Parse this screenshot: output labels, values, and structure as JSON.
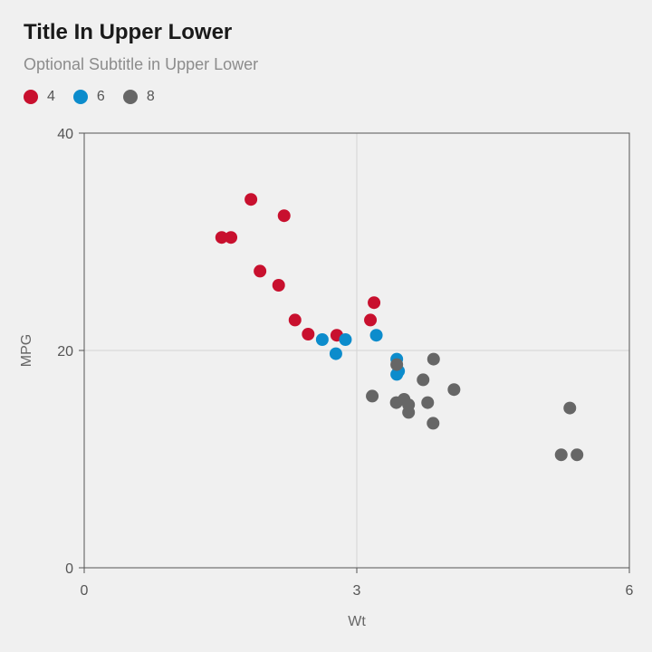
{
  "chart_data": {
    "type": "scatter",
    "title": "Title In Upper Lower",
    "subtitle": "Optional Subtitle in Upper Lower",
    "xlabel": "Wt",
    "ylabel": "MPG",
    "xlim": [
      0,
      6
    ],
    "ylim": [
      0,
      40
    ],
    "xticks": [
      0,
      3,
      6
    ],
    "yticks": [
      0,
      20,
      40
    ],
    "grid": true,
    "legend_position": "top-left",
    "series": [
      {
        "name": "4",
        "color": "#c8102e",
        "points": [
          [
            1.513,
            30.4
          ],
          [
            1.615,
            30.4
          ],
          [
            1.835,
            33.9
          ],
          [
            2.2,
            32.4
          ],
          [
            1.935,
            27.3
          ],
          [
            2.14,
            26.0
          ],
          [
            2.32,
            22.8
          ],
          [
            2.465,
            21.5
          ],
          [
            2.78,
            21.4
          ],
          [
            3.15,
            22.8
          ],
          [
            3.19,
            24.4
          ]
        ]
      },
      {
        "name": "6",
        "color": "#0c8ccc",
        "points": [
          [
            2.62,
            21.0
          ],
          [
            2.875,
            21.0
          ],
          [
            2.77,
            19.7
          ],
          [
            3.215,
            21.4
          ],
          [
            3.44,
            19.2
          ],
          [
            3.44,
            17.8
          ],
          [
            3.46,
            18.1
          ]
        ]
      },
      {
        "name": "8",
        "color": "#666666",
        "points": [
          [
            3.44,
            18.7
          ],
          [
            3.57,
            14.3
          ],
          [
            4.07,
            16.4
          ],
          [
            3.73,
            17.3
          ],
          [
            3.78,
            15.2
          ],
          [
            5.25,
            10.4
          ],
          [
            5.424,
            10.4
          ],
          [
            5.345,
            14.7
          ],
          [
            3.52,
            15.5
          ],
          [
            3.435,
            15.2
          ],
          [
            3.84,
            13.3
          ],
          [
            3.845,
            19.2
          ],
          [
            3.17,
            15.8
          ],
          [
            3.57,
            15.0
          ]
        ]
      }
    ]
  }
}
